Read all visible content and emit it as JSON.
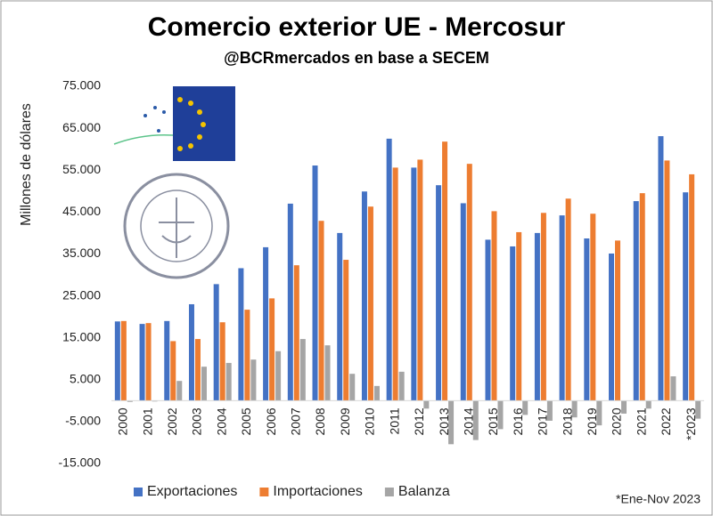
{
  "chart_data": {
    "type": "bar",
    "title": "Comercio exterior UE - Mercosur",
    "subtitle": "@BCRmercados en base a SECEM",
    "y_label": "Millones de dólares",
    "note": "*Ene-Nov 2023",
    "categories": [
      "2000",
      "2001",
      "2002",
      "2003",
      "2004",
      "2005",
      "2006",
      "2007",
      "2008",
      "2009",
      "2010",
      "2011",
      "2012",
      "2013",
      "2014",
      "2015",
      "2016",
      "2017",
      "2018",
      "2019",
      "2020",
      "2021",
      "2022",
      "*2023"
    ],
    "series": [
      {
        "name": "Exportaciones",
        "color": "#4472c4",
        "values": [
          18900,
          18300,
          19000,
          23000,
          27800,
          31600,
          36600,
          47000,
          56100,
          40000,
          49900,
          62500,
          55600,
          51400,
          47100,
          38400,
          36800,
          40000,
          44200,
          38700,
          35100,
          47600,
          63100,
          49700
        ]
      },
      {
        "name": "Importaciones",
        "color": "#ed7d31",
        "values": [
          19000,
          18500,
          14200,
          14700,
          18700,
          21700,
          24400,
          32300,
          42900,
          33600,
          46300,
          55600,
          57500,
          61800,
          56500,
          45200,
          40200,
          44800,
          48200,
          44600,
          38200,
          49500,
          57300,
          54000
        ]
      },
      {
        "name": "Balanza",
        "color": "#a5a5a5",
        "values": [
          -300,
          -200,
          4700,
          8100,
          9000,
          9800,
          11800,
          14700,
          13200,
          6400,
          3500,
          6900,
          -1900,
          -10400,
          -9400,
          -6800,
          -3400,
          -4800,
          -4000,
          -5900,
          -3100,
          -1900,
          5800,
          -4300
        ]
      }
    ],
    "ylim": [
      -15000,
      75000
    ],
    "yticks": [
      {
        "value": -15000,
        "label": "-15.000"
      },
      {
        "value": -5000,
        "label": "-5.000"
      },
      {
        "value": 5000,
        "label": "5.000"
      },
      {
        "value": 15000,
        "label": "15.000"
      },
      {
        "value": 25000,
        "label": "25.000"
      },
      {
        "value": 35000,
        "label": "35.000"
      },
      {
        "value": 45000,
        "label": "45.000"
      },
      {
        "value": 55000,
        "label": "55.000"
      },
      {
        "value": 65000,
        "label": "65.000"
      },
      {
        "value": 75000,
        "label": "75.000"
      }
    ],
    "grid": false,
    "legend": "bottom-left"
  }
}
